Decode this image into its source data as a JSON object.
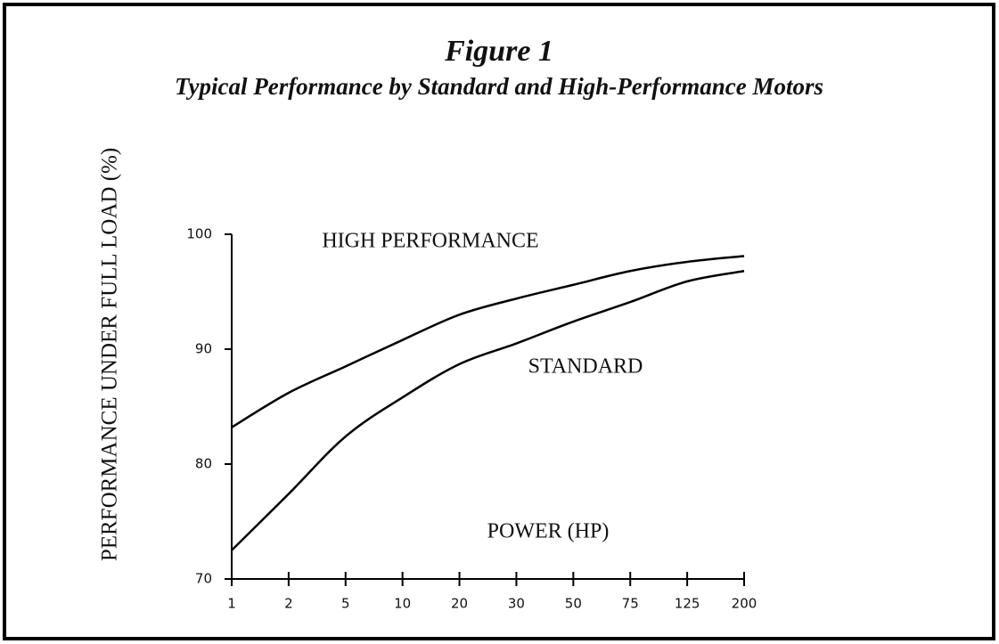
{
  "chart_data": {
    "type": "line",
    "title": "Figure 1",
    "subtitle": "Typical Performance by Standard and High-Performance Motors",
    "y_label": "PERFORMANCE UNDER FULL LOAD (%)",
    "x_label": "POWER (HP)",
    "categories": [
      "1",
      "2",
      "5",
      "10",
      "20",
      "30",
      "50",
      "75",
      "125",
      "200"
    ],
    "series": [
      {
        "name": "HIGH PERFORMANCE",
        "color": "#000000",
        "values": [
          83.2,
          86.2,
          88.5,
          90.8,
          93.0,
          94.4,
          95.6,
          96.8,
          97.6,
          98.1
        ]
      },
      {
        "name": "STANDARD",
        "color": "#000000",
        "values": [
          72.5,
          77.4,
          82.4,
          85.8,
          88.7,
          90.5,
          92.4,
          94.1,
          95.9,
          96.8
        ]
      }
    ],
    "ylim": [
      70,
      100
    ],
    "yticks": [
      70,
      80,
      90,
      100
    ]
  }
}
